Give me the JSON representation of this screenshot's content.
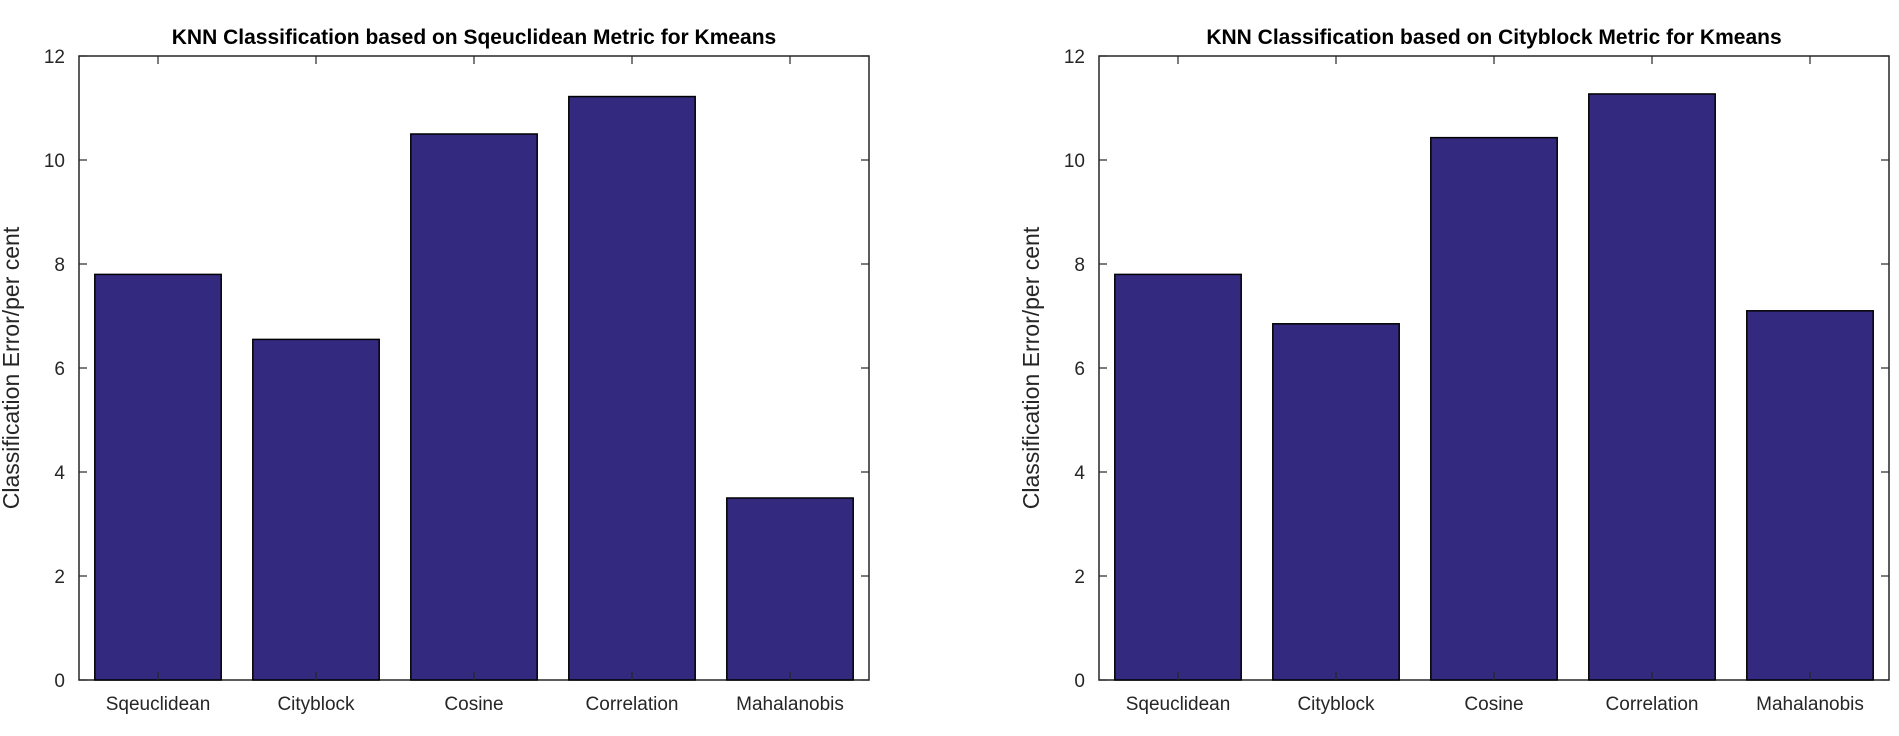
{
  "chart_data": [
    {
      "type": "bar",
      "title": "KNN Classification based on Sqeuclidean Metric for Kmeans",
      "xlabel": "",
      "ylabel": "Classification Error/per cent",
      "categories": [
        "Sqeuclidean",
        "Cityblock",
        "Cosine",
        "Correlation",
        "Mahalanobis"
      ],
      "values": [
        7.8,
        6.55,
        10.5,
        11.22,
        3.5
      ],
      "ylim": [
        0,
        12
      ],
      "yticks": [
        0,
        2,
        4,
        6,
        8,
        10,
        12
      ],
      "grid": false,
      "colors": {
        "bar": "#332a80",
        "edge": "#000000"
      }
    },
    {
      "type": "bar",
      "title": "KNN Classification based on Cityblock Metric for Kmeans",
      "xlabel": "",
      "ylabel": "Classification Error/per cent",
      "categories": [
        "Sqeuclidean",
        "Cityblock",
        "Cosine",
        "Correlation",
        "Mahalanobis"
      ],
      "values": [
        7.8,
        6.85,
        10.43,
        11.27,
        7.1
      ],
      "ylim": [
        0,
        12
      ],
      "yticks": [
        0,
        2,
        4,
        6,
        8,
        10,
        12
      ],
      "grid": false,
      "colors": {
        "bar": "#332a80",
        "edge": "#000000"
      }
    }
  ]
}
